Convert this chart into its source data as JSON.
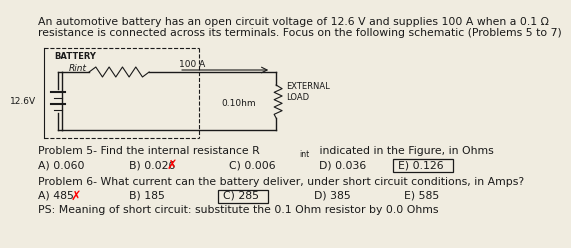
{
  "bg_color": "#f0ece0",
  "text_color": "#1a1a1a",
  "title_line1": "An automotive battery has an open circuit voltage of 12.6 V and supplies 100 A when a 0.1 Ω",
  "title_line2": "resistance is connected across its terminals. Focus on the following schematic (Problems 5 to 7)",
  "p5_label": "Problem 5- Find the internal resistance R",
  "p5_sub": "int",
  "p5_rest": " indicated in the Figure, in Ohms",
  "p5_a": "A) 0.060",
  "p5_b": "B) 0.026",
  "p5_c": "C) 0.006",
  "p5_d": "D) 0.036",
  "p5_e": "E) 0.126",
  "p6_label": "Problem 6- What current can the battery deliver, under short circuit conditions, in Amps?",
  "p6_a": "A) 485",
  "p6_b": "B) 185",
  "p6_c": "C) 285",
  "p6_d": "D) 385",
  "p6_e": "E) 585",
  "ps_text": "PS: Meaning of short circuit: substitute the 0.1 Ohm resistor by 0.0 Ohms",
  "font_size": 7.8,
  "small_font": 6.5
}
